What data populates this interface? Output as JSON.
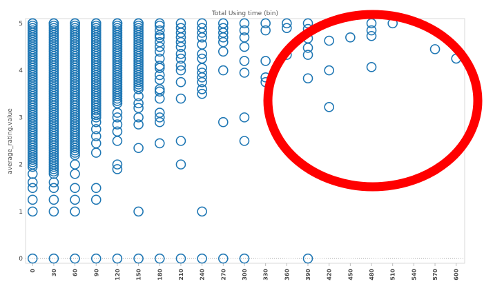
{
  "chart_data": {
    "type": "scatter",
    "title": "Total Using time (bin)",
    "xlabel": "",
    "ylabel": "average_rating.value",
    "x_ticks": [
      0,
      30,
      60,
      90,
      120,
      150,
      180,
      210,
      240,
      270,
      300,
      330,
      360,
      390,
      420,
      450,
      480,
      510,
      540,
      570,
      600
    ],
    "y_ticks": [
      0,
      1,
      2,
      3,
      4,
      5
    ],
    "xlim": [
      -10,
      612
    ],
    "ylim": [
      -0.1,
      5.1
    ],
    "grid": false,
    "legend": "none",
    "marker": "hollow circle",
    "series_color": "#1f77b4",
    "annotation_color": "#ff0000",
    "annotation": "red ellipse highlighting sparse points at high using-time bins (330 and above)",
    "columns": [
      {
        "x": 0,
        "dense_from": 2.0,
        "dense_to": 5.0,
        "extra": [
          1.0,
          1.25,
          1.5,
          1.62,
          1.8,
          1.95,
          0.0
        ]
      },
      {
        "x": 30,
        "dense_from": 1.8,
        "dense_to": 5.0,
        "extra": [
          1.0,
          1.25,
          1.5,
          1.62,
          0.0
        ]
      },
      {
        "x": 60,
        "dense_from": 2.2,
        "dense_to": 5.0,
        "extra": [
          1.0,
          1.25,
          1.5,
          1.8,
          2.0,
          0.0
        ]
      },
      {
        "x": 90,
        "dense_from": 3.0,
        "dense_to": 5.0,
        "extra": [
          1.25,
          1.5,
          2.25,
          2.45,
          2.6,
          2.75,
          2.9,
          0.0
        ]
      },
      {
        "x": 120,
        "dense_from": 3.3,
        "dense_to": 5.0,
        "extra": [
          1.9,
          2.0,
          2.5,
          2.7,
          2.85,
          3.0,
          3.1,
          0.0
        ]
      },
      {
        "x": 150,
        "dense_from": 3.6,
        "dense_to": 5.0,
        "extra": [
          1.0,
          2.35,
          2.85,
          3.0,
          3.2,
          3.3,
          3.45,
          0.0
        ]
      }
    ],
    "points": [
      {
        "x": 180,
        "y": 5.0
      },
      {
        "x": 180,
        "y": 4.95
      },
      {
        "x": 180,
        "y": 4.85
      },
      {
        "x": 180,
        "y": 4.75
      },
      {
        "x": 180,
        "y": 4.7
      },
      {
        "x": 180,
        "y": 4.6
      },
      {
        "x": 180,
        "y": 4.5
      },
      {
        "x": 180,
        "y": 4.4
      },
      {
        "x": 180,
        "y": 4.25
      },
      {
        "x": 180,
        "y": 4.1
      },
      {
        "x": 180,
        "y": 4.05
      },
      {
        "x": 180,
        "y": 3.9
      },
      {
        "x": 180,
        "y": 3.8
      },
      {
        "x": 180,
        "y": 3.6
      },
      {
        "x": 180,
        "y": 3.55
      },
      {
        "x": 180,
        "y": 3.4
      },
      {
        "x": 180,
        "y": 3.1
      },
      {
        "x": 180,
        "y": 3.0
      },
      {
        "x": 180,
        "y": 2.9
      },
      {
        "x": 180,
        "y": 2.45
      },
      {
        "x": 180,
        "y": 0.0
      },
      {
        "x": 210,
        "y": 5.0
      },
      {
        "x": 210,
        "y": 4.9
      },
      {
        "x": 210,
        "y": 4.8
      },
      {
        "x": 210,
        "y": 4.7
      },
      {
        "x": 210,
        "y": 4.6
      },
      {
        "x": 210,
        "y": 4.5
      },
      {
        "x": 210,
        "y": 4.35
      },
      {
        "x": 210,
        "y": 4.25
      },
      {
        "x": 210,
        "y": 4.1
      },
      {
        "x": 210,
        "y": 4.0
      },
      {
        "x": 210,
        "y": 3.75
      },
      {
        "x": 210,
        "y": 3.4
      },
      {
        "x": 210,
        "y": 2.5
      },
      {
        "x": 210,
        "y": 2.0
      },
      {
        "x": 210,
        "y": 0.0
      },
      {
        "x": 240,
        "y": 5.0
      },
      {
        "x": 240,
        "y": 4.9
      },
      {
        "x": 240,
        "y": 4.8
      },
      {
        "x": 240,
        "y": 4.7
      },
      {
        "x": 240,
        "y": 4.55
      },
      {
        "x": 240,
        "y": 4.35
      },
      {
        "x": 240,
        "y": 4.25
      },
      {
        "x": 240,
        "y": 4.05
      },
      {
        "x": 240,
        "y": 3.95
      },
      {
        "x": 240,
        "y": 3.85
      },
      {
        "x": 240,
        "y": 3.75
      },
      {
        "x": 240,
        "y": 3.6
      },
      {
        "x": 240,
        "y": 3.5
      },
      {
        "x": 240,
        "y": 1.0
      },
      {
        "x": 240,
        "y": 0.0
      },
      {
        "x": 270,
        "y": 5.0
      },
      {
        "x": 270,
        "y": 4.9
      },
      {
        "x": 270,
        "y": 4.8
      },
      {
        "x": 270,
        "y": 4.7
      },
      {
        "x": 270,
        "y": 4.6
      },
      {
        "x": 270,
        "y": 4.4
      },
      {
        "x": 270,
        "y": 4.0
      },
      {
        "x": 270,
        "y": 2.9
      },
      {
        "x": 270,
        "y": 0.0
      },
      {
        "x": 300,
        "y": 5.0
      },
      {
        "x": 300,
        "y": 4.85
      },
      {
        "x": 300,
        "y": 4.7
      },
      {
        "x": 300,
        "y": 4.5
      },
      {
        "x": 300,
        "y": 4.2
      },
      {
        "x": 300,
        "y": 3.95
      },
      {
        "x": 300,
        "y": 3.0
      },
      {
        "x": 300,
        "y": 2.5
      },
      {
        "x": 300,
        "y": 0.0
      },
      {
        "x": 330,
        "y": 5.0
      },
      {
        "x": 330,
        "y": 4.85
      },
      {
        "x": 330,
        "y": 4.2
      },
      {
        "x": 330,
        "y": 3.85
      },
      {
        "x": 330,
        "y": 3.75
      },
      {
        "x": 360,
        "y": 5.0
      },
      {
        "x": 360,
        "y": 4.9
      },
      {
        "x": 360,
        "y": 4.33
      },
      {
        "x": 390,
        "y": 5.0
      },
      {
        "x": 390,
        "y": 4.88
      },
      {
        "x": 390,
        "y": 4.68
      },
      {
        "x": 390,
        "y": 4.48
      },
      {
        "x": 390,
        "y": 4.33
      },
      {
        "x": 390,
        "y": 3.83
      },
      {
        "x": 390,
        "y": 0.0
      },
      {
        "x": 420,
        "y": 4.63
      },
      {
        "x": 420,
        "y": 4.0
      },
      {
        "x": 420,
        "y": 3.22
      },
      {
        "x": 450,
        "y": 4.7
      },
      {
        "x": 480,
        "y": 5.0
      },
      {
        "x": 480,
        "y": 4.85
      },
      {
        "x": 480,
        "y": 4.73
      },
      {
        "x": 480,
        "y": 4.07
      },
      {
        "x": 510,
        "y": 5.0
      },
      {
        "x": 570,
        "y": 4.45
      },
      {
        "x": 600,
        "y": 4.25
      }
    ]
  }
}
